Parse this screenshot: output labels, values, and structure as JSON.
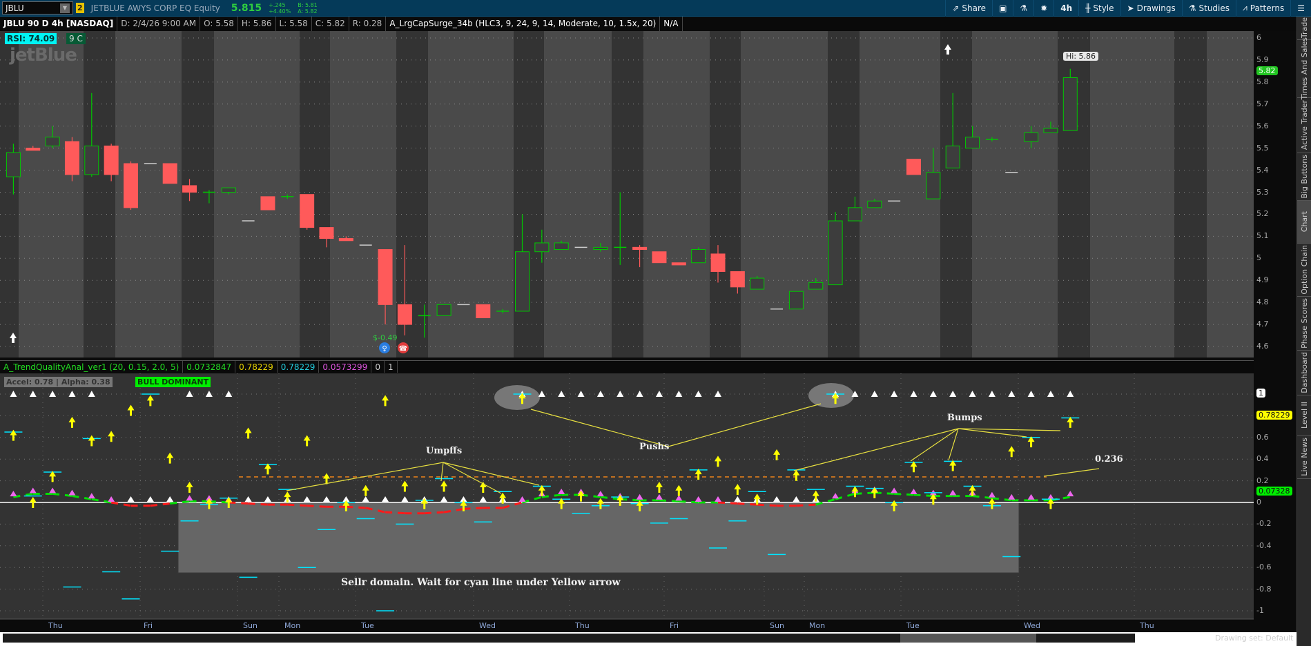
{
  "toolbar": {
    "symbol": "JBLU",
    "link_group": "2",
    "description": "JETBLUE AWYS CORP EQ Equity",
    "last": "5.815",
    "change": "+.245",
    "change_pct": "+4.40%",
    "bid": "B: 5.81",
    "ask": "A: 5.82",
    "buttons": [
      {
        "label": "Share",
        "icon": "share-icon"
      },
      {
        "label": "",
        "icon": "notes-icon"
      },
      {
        "label": "",
        "icon": "flask-icon"
      },
      {
        "label": "",
        "icon": "gear-icon"
      },
      {
        "label": "4h",
        "icon": ""
      },
      {
        "label": "Style",
        "icon": "candle-icon"
      },
      {
        "label": "Drawings",
        "icon": "cursor-icon"
      },
      {
        "label": "Studies",
        "icon": "flask-icon"
      },
      {
        "label": "Patterns",
        "icon": "patterns-icon"
      },
      {
        "label": "",
        "icon": "menu-icon"
      }
    ]
  },
  "status": {
    "title": "JBLU 90 D 4h [NASDAQ]",
    "date": "D: 2/4/26 9:00 AM",
    "open": "O: 5.58",
    "high": "H: 5.86",
    "low": "L: 5.58",
    "close": "C: 5.82",
    "range": "R: 0.28",
    "study": "A_LrgCapSurge_34b (HLC3, 9, 24, 9, 14, Moderate, 10, 1.5x, 20)",
    "study_value": "N/A"
  },
  "overlay": {
    "rsi": "RSI: 74.09",
    "rsi_extra": "9 C",
    "logo": "jetBlue",
    "hi_label": "Hi: 5.86",
    "earnings": "$-0.49",
    "price_badge": "5.82"
  },
  "indicator": {
    "name": "A_TrendQualityAnal_ver1 (20, 0.15, 2.0, 5)",
    "v1": "0.0732847",
    "v2": "0.78229",
    "v3": "0.78229",
    "v4": "0.0573299",
    "v5": "0",
    "v6": "1",
    "accel": "Accel: 0.78 | Alpha: 0.38",
    "state": "BULL DOMINANT",
    "badge_top": "1",
    "badge_yellow": "0.78229",
    "badge_green": "0.07328"
  },
  "annotations": {
    "umpffs": "Umpffs",
    "pushs": "Pushs",
    "bumps": "Bumps",
    "level": "0.236",
    "seller": "Sellr domain. Wait for cyan line under Yellow arrow"
  },
  "price_axis": [
    "6",
    "5.9",
    "5.8",
    "5.7",
    "5.6",
    "5.5",
    "5.4",
    "5.3",
    "5.2",
    "5.1",
    "5",
    "4.9",
    "4.8",
    "4.7",
    "4.6"
  ],
  "ind_axis": [
    "0.6",
    "0.4",
    "0.2",
    "0",
    "-0.2",
    "-0.4",
    "-0.6",
    "-0.8",
    "-1"
  ],
  "time_axis": [
    "Thu",
    "Fri",
    "Sun",
    "Mon",
    "Tue",
    "Wed",
    "Thu",
    "Fri",
    "Sun",
    "Mon",
    "Tue",
    "Wed",
    "Thu"
  ],
  "sidebar": [
    "Trade",
    "Times And Sales",
    "Active Trader",
    "Big Buttons",
    "Chart",
    "Option Chain",
    "Phase Scores",
    "Dashboard",
    "Level II",
    "Live News"
  ],
  "footer": {
    "drawing_set": "Drawing set: Default"
  },
  "colors": {
    "up": "#00c800",
    "down": "#ff5a5a",
    "cyan": "#00e5ff",
    "arrow": "#ffff00",
    "trend_up": "#00e000",
    "trend_down": "#ff1a1a",
    "magenta": "#ee66ee",
    "level": "#c07020"
  },
  "chart_data": [
    {
      "type": "candlestick",
      "title": "JBLU 90 D 4h",
      "ylim": [
        4.6,
        6.0
      ],
      "ohlc": [
        [
          5.37,
          5.52,
          5.29,
          5.48
        ],
        [
          5.5,
          5.51,
          5.49,
          5.49
        ],
        [
          5.51,
          5.6,
          5.5,
          5.55
        ],
        [
          5.53,
          5.55,
          5.35,
          5.38
        ],
        [
          5.38,
          5.75,
          5.37,
          5.51
        ],
        [
          5.51,
          5.52,
          5.35,
          5.38
        ],
        [
          5.43,
          5.44,
          5.22,
          5.23
        ],
        [
          5.43,
          5.43,
          5.43,
          5.43
        ],
        [
          5.43,
          5.43,
          5.34,
          5.34
        ],
        [
          5.33,
          5.36,
          5.26,
          5.3
        ],
        [
          5.3,
          5.31,
          5.25,
          5.3
        ],
        [
          5.3,
          5.32,
          5.29,
          5.32
        ],
        [
          5.17,
          5.17,
          5.17,
          5.17
        ],
        [
          5.28,
          5.28,
          5.22,
          5.22
        ],
        [
          5.28,
          5.29,
          5.27,
          5.28
        ],
        [
          5.29,
          5.29,
          5.13,
          5.14
        ],
        [
          5.14,
          5.14,
          5.05,
          5.09
        ],
        [
          5.09,
          5.1,
          5.08,
          5.08
        ],
        [
          5.06,
          5.06,
          5.06,
          5.06
        ],
        [
          5.04,
          5.04,
          4.7,
          4.79
        ],
        [
          4.79,
          5.06,
          4.65,
          4.7
        ],
        [
          4.74,
          4.79,
          4.64,
          4.74
        ],
        [
          4.74,
          4.79,
          4.74,
          4.79
        ],
        [
          4.79,
          4.79,
          4.79,
          4.79
        ],
        [
          4.79,
          4.79,
          4.73,
          4.73
        ],
        [
          4.76,
          4.77,
          4.75,
          4.76
        ],
        [
          4.76,
          5.2,
          4.76,
          5.03
        ],
        [
          5.03,
          5.13,
          4.98,
          5.07
        ],
        [
          5.04,
          5.08,
          5.04,
          5.07
        ],
        [
          5.05,
          5.05,
          5.05,
          5.05
        ],
        [
          5.04,
          5.07,
          5.03,
          5.05
        ],
        [
          5.05,
          5.3,
          4.97,
          5.05
        ],
        [
          5.05,
          5.06,
          4.96,
          5.04
        ],
        [
          5.03,
          5.03,
          4.98,
          4.98
        ],
        [
          4.98,
          4.98,
          4.97,
          4.97
        ],
        [
          4.98,
          5.05,
          4.98,
          5.04
        ],
        [
          5.02,
          5.06,
          4.89,
          4.94
        ],
        [
          4.94,
          4.94,
          4.84,
          4.87
        ],
        [
          4.86,
          4.92,
          4.86,
          4.91
        ],
        [
          4.77,
          4.77,
          4.77,
          4.77
        ],
        [
          4.77,
          4.85,
          4.77,
          4.85
        ],
        [
          4.86,
          4.91,
          4.86,
          4.89
        ],
        [
          4.88,
          5.21,
          4.88,
          5.17
        ],
        [
          5.17,
          5.28,
          5.17,
          5.23
        ],
        [
          5.23,
          5.27,
          5.23,
          5.26
        ],
        [
          5.26,
          5.26,
          5.26,
          5.26
        ],
        [
          5.45,
          5.45,
          5.38,
          5.38
        ],
        [
          5.27,
          5.5,
          5.27,
          5.39
        ],
        [
          5.41,
          5.75,
          5.41,
          5.51
        ],
        [
          5.5,
          5.6,
          5.5,
          5.55
        ],
        [
          5.54,
          5.55,
          5.53,
          5.54
        ],
        [
          5.39,
          5.39,
          5.39,
          5.39
        ],
        [
          5.53,
          5.6,
          5.5,
          5.57
        ],
        [
          5.57,
          5.62,
          5.57,
          5.59
        ],
        [
          5.58,
          5.86,
          5.58,
          5.82
        ]
      ]
    },
    {
      "type": "indicator",
      "name": "A_TrendQualityAnal_ver1",
      "ylim": [
        -1,
        1
      ],
      "level": 0.236,
      "arrows": [
        0.62,
        0.0,
        0.24,
        0.74,
        0.57,
        0.61,
        0.85,
        0.94,
        0.41,
        0.14,
        -0.01,
        0.0,
        0.64,
        0.31,
        0.05,
        0.57,
        0.22,
        -0.03,
        0.11,
        0.94,
        0.15,
        -0.01,
        0.15,
        -0.03,
        0.14,
        0.04,
        0.96,
        0.11,
        -0.01,
        0.06,
        -0.01,
        0.02,
        -0.03,
        0.14,
        0.11,
        0.26,
        0.38,
        0.12,
        0.03,
        0.44,
        0.25,
        0.06,
        0.96,
        0.1,
        0.09,
        -0.03,
        0.33,
        0.03,
        0.34,
        0.11,
        -0.01,
        0.47,
        0.56,
        -0.01,
        0.74
      ],
      "cyan": [
        [
          0,
          0.65
        ],
        [
          1,
          0.06
        ],
        [
          2,
          0.28
        ],
        [
          3,
          -0.78
        ],
        [
          4,
          0.59
        ],
        [
          5,
          -0.64
        ],
        [
          6,
          -0.89
        ],
        [
          7,
          1.0
        ],
        [
          8,
          -0.45
        ],
        [
          9,
          -0.17
        ],
        [
          10,
          -0.02
        ],
        [
          11,
          0.04
        ],
        [
          12,
          -0.69
        ],
        [
          13,
          0.35
        ],
        [
          14,
          0.12
        ],
        [
          15,
          -0.6
        ],
        [
          16,
          -0.25
        ],
        [
          17,
          0.0
        ],
        [
          18,
          -0.15
        ],
        [
          19,
          -1.0
        ],
        [
          20,
          -0.2
        ],
        [
          21,
          0.02
        ],
        [
          22,
          0.22
        ],
        [
          23,
          0.0
        ],
        [
          24,
          -0.18
        ],
        [
          25,
          0.1
        ],
        [
          26,
          1.0
        ],
        [
          27,
          0.15
        ],
        [
          28,
          0.03
        ],
        [
          29,
          -0.1
        ],
        [
          30,
          -0.03
        ],
        [
          31,
          0.05
        ],
        [
          32,
          -0.01
        ],
        [
          33,
          -0.19
        ],
        [
          34,
          -0.15
        ],
        [
          35,
          0.3
        ],
        [
          36,
          -0.42
        ],
        [
          37,
          -0.17
        ],
        [
          38,
          0.1
        ],
        [
          39,
          -0.48
        ],
        [
          40,
          0.3
        ],
        [
          41,
          0.12
        ],
        [
          42,
          1.0
        ],
        [
          43,
          0.15
        ],
        [
          44,
          0.13
        ],
        [
          45,
          0.0
        ],
        [
          46,
          0.37
        ],
        [
          47,
          0.09
        ],
        [
          48,
          0.38
        ],
        [
          49,
          0.15
        ],
        [
          50,
          -0.03
        ],
        [
          51,
          -0.5
        ],
        [
          52,
          0.6
        ],
        [
          53,
          0.03
        ],
        [
          54,
          0.78
        ]
      ],
      "top_markers": [
        0,
        1,
        2,
        3,
        4,
        9,
        10,
        11,
        26,
        27,
        28,
        29,
        30,
        31,
        32,
        33,
        34,
        35,
        36,
        42,
        43,
        44,
        45,
        46,
        47,
        48,
        49,
        50,
        51,
        52,
        53,
        54
      ],
      "trend": [
        0.05,
        0.08,
        0.08,
        0.06,
        0.03,
        0.0,
        -0.03,
        -0.03,
        -0.01,
        0.01,
        0.01,
        0.0,
        -0.01,
        -0.02,
        -0.02,
        -0.03,
        -0.04,
        -0.04,
        -0.05,
        -0.09,
        -0.1,
        -0.1,
        -0.09,
        -0.06,
        -0.05,
        -0.05,
        0.0,
        0.05,
        0.07,
        0.07,
        0.05,
        0.03,
        0.02,
        0.02,
        0.01,
        0.0,
        0.0,
        -0.01,
        -0.02,
        -0.03,
        -0.03,
        -0.02,
        0.03,
        0.08,
        0.09,
        0.08,
        0.07,
        0.06,
        0.06,
        0.06,
        0.04,
        0.02,
        0.02,
        0.02,
        0.05
      ]
    }
  ]
}
